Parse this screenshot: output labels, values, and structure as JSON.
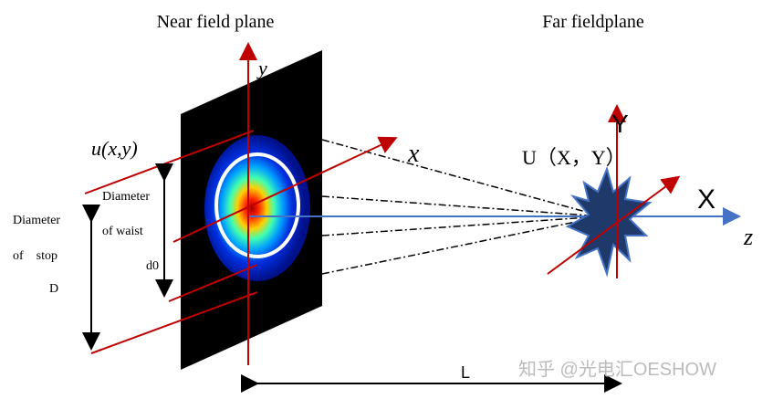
{
  "header": {
    "near_title": "Near field plane",
    "far_title": "Far fieldplane"
  },
  "near_field": {
    "y_axis": "y",
    "x_axis": "x",
    "field": "u(x,y)",
    "waist_label": "Diameter",
    "waist_label2": "of waist",
    "waist_symbol": "d0",
    "stop_label": "Diameter",
    "stop_label2": "of    stop",
    "stop_symbol": "D"
  },
  "far_field": {
    "field": "U（X，Y）",
    "y_axis": "Y",
    "x_axis": "X",
    "z_axis": "z"
  },
  "distance": "L",
  "watermark": "知乎 @光电汇OESHOW"
}
